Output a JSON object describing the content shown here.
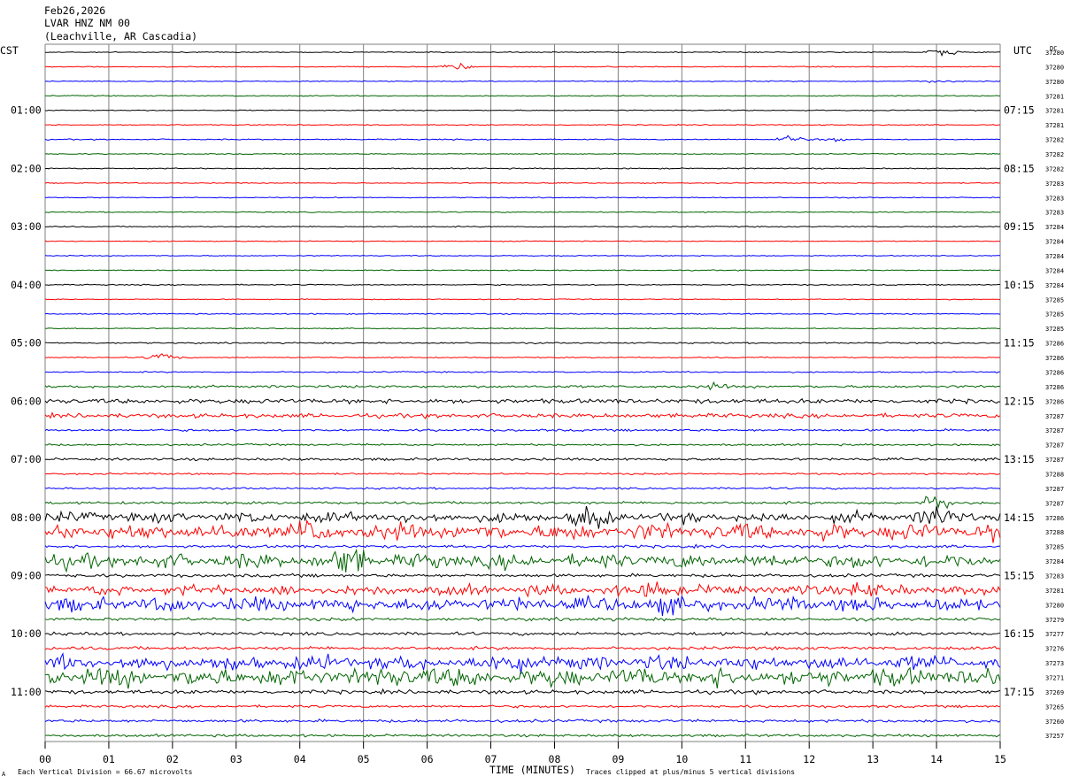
{
  "header": {
    "date": "Feb26,2026",
    "station": "LVAR HNZ NM 00",
    "location": "(Leachville, AR Cascadia)"
  },
  "axis": {
    "left_title": "CST",
    "right_title": "UTC",
    "dc_label": "DC",
    "x_title": "TIME (MINUTES)",
    "x_ticks": [
      "00",
      "01",
      "02",
      "03",
      "04",
      "05",
      "06",
      "07",
      "08",
      "09",
      "10",
      "11",
      "12",
      "13",
      "14",
      "15"
    ]
  },
  "footer": {
    "scale_marker": "A",
    "scale_note": "Each Vertical Division =   66.67 microvolts",
    "clip_note": "Traces clipped at plus/minus 5 vertical divisions"
  },
  "colors": {
    "trace_cycle": [
      "#000000",
      "#ff0000",
      "#0000ff",
      "#006400"
    ],
    "grid": "#808080",
    "text": "#000000"
  },
  "chart_data": {
    "type": "line",
    "subtype": "helicorder",
    "title": "LVAR HNZ NM 00",
    "xlabel": "TIME (MINUTES)",
    "xlim": [
      0,
      15
    ],
    "minutes_per_line": 15,
    "lines_count": 48,
    "grid": true,
    "left_time_labels": [
      "01:00",
      "02:00",
      "03:00",
      "04:00",
      "05:00",
      "06:00",
      "07:00",
      "08:00",
      "09:00",
      "10:00",
      "11:00"
    ],
    "right_time_labels": [
      "07:15",
      "08:15",
      "09:15",
      "10:15",
      "11:15",
      "12:15",
      "13:15",
      "14:15",
      "15:15",
      "16:15",
      "17:15"
    ],
    "dc_offsets": [
      "37280",
      "37280",
      "37280",
      "37281",
      "37281",
      "37281",
      "37282",
      "37282",
      "37282",
      "37283",
      "37283",
      "37283",
      "37284",
      "37284",
      "37284",
      "37284",
      "37284",
      "37285",
      "37285",
      "37285",
      "37286",
      "37286",
      "37286",
      "37286",
      "37286",
      "37287",
      "37287",
      "37287",
      "37287",
      "37288",
      "37287",
      "37287",
      "37286",
      "37288",
      "37285",
      "37284",
      "37283",
      "37281",
      "37280",
      "37279",
      "37277",
      "37276",
      "37273",
      "37271",
      "37269",
      "37265",
      "37260",
      "37257"
    ],
    "amplitude_levels": [
      0.3,
      0.3,
      0.3,
      0.3,
      0.3,
      0.3,
      0.35,
      0.3,
      0.35,
      0.3,
      0.3,
      0.3,
      0.35,
      0.3,
      0.3,
      0.3,
      0.35,
      0.3,
      0.35,
      0.3,
      0.45,
      0.35,
      0.4,
      0.8,
      1.4,
      1.3,
      0.7,
      0.6,
      0.8,
      0.55,
      0.6,
      0.8,
      2.5,
      4.0,
      0.9,
      3.5,
      1.0,
      2.5,
      3.5,
      1.0,
      1.0,
      1.0,
      3.5,
      4.5,
      1.2,
      0.8,
      0.9,
      0.8
    ],
    "events": [
      {
        "line": 0,
        "minute": 14.1,
        "amplitude": 2.5
      },
      {
        "line": 1,
        "minute": 6.45,
        "amplitude": 2.0
      },
      {
        "line": 2,
        "minute": 14.0,
        "amplitude": 1.0
      },
      {
        "line": 6,
        "minute": 11.7,
        "amplitude": 2.5
      },
      {
        "line": 6,
        "minute": 12.4,
        "amplitude": 1.2
      },
      {
        "line": 21,
        "minute": 1.85,
        "amplitude": 3.0
      },
      {
        "line": 23,
        "minute": 10.5,
        "amplitude": 1.5
      },
      {
        "line": 32,
        "minute": 8.55,
        "amplitude": 5.0
      },
      {
        "line": 32,
        "minute": 14.0,
        "amplitude": 5.0
      },
      {
        "line": 31,
        "minute": 14.0,
        "amplitude": 6.0
      },
      {
        "line": 33,
        "minute": 4.2,
        "amplitude": 4.0
      },
      {
        "line": 35,
        "minute": 4.8,
        "amplitude": 6.0
      },
      {
        "line": 37,
        "minute": 9.7,
        "amplitude": 6.0
      },
      {
        "line": 37,
        "minute": 12.8,
        "amplitude": 5.0
      },
      {
        "line": 38,
        "minute": 9.6,
        "amplitude": 4.0
      },
      {
        "line": 42,
        "minute": 7.4,
        "amplitude": 4.0
      },
      {
        "line": 43,
        "minute": 5.9,
        "amplitude": 4.0
      }
    ]
  }
}
